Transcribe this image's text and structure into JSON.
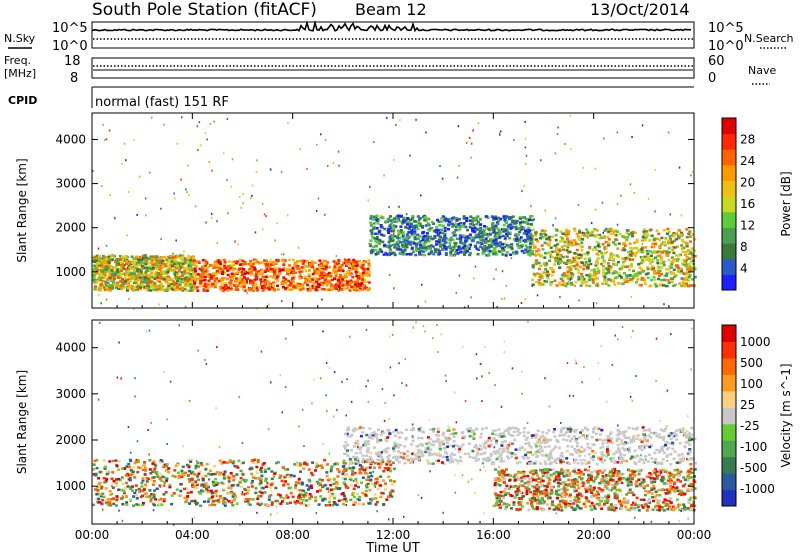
{
  "header": {
    "station": "South Pole Station (fitACF)",
    "beam": "Beam 12",
    "date": "13/Oct/2014"
  },
  "left_labels": {
    "nsky": "N.Sky",
    "freq": "Freq.",
    "mhz": "[MHz]",
    "cpid": "CPID"
  },
  "right_labels": {
    "nsearch": "N.Search",
    "nave": "Nave"
  },
  "noise_axis": {
    "top_left": "10^5",
    "bot_left": "10^0",
    "top_right": "10^5",
    "bot_right": "10^0"
  },
  "freq_axis": {
    "top": "18",
    "bottom": "8"
  },
  "nave_axis": {
    "top": "60",
    "bottom": "0"
  },
  "cpid_text": "normal (fast) 151 RF",
  "xlabel": "Time UT",
  "chart_data": [
    {
      "type": "heatmap",
      "title": "",
      "xlabel": "Time UT",
      "ylabel": "Slant Range [km]",
      "x_ticks": [
        "00:00",
        "04:00",
        "08:00",
        "12:00",
        "16:00",
        "20:00",
        "00:00"
      ],
      "x_range_hours": [
        0,
        24
      ],
      "y_ticks": [
        1000,
        2000,
        3000,
        4000
      ],
      "ylim": [
        180,
        4600
      ],
      "colorbar": {
        "label": "Power [dB]",
        "ticks": [
          "4",
          "8",
          "12",
          "16",
          "20",
          "24",
          "28"
        ],
        "colors": [
          "#1e1eff",
          "#2a5cc8",
          "#3a7a3a",
          "#4aa050",
          "#5bcc3a",
          "#c8d820",
          "#f0c010",
          "#ff9a00",
          "#ff6400",
          "#ff2800",
          "#e00000"
        ]
      },
      "bands": [
        {
          "t0": 0.0,
          "t1": 4.0,
          "r0": 600,
          "r1": 1400,
          "level": "mid"
        },
        {
          "t0": 4.0,
          "t1": 11.0,
          "r0": 600,
          "r1": 1300,
          "level": "high"
        },
        {
          "t0": 11.0,
          "t1": 17.5,
          "r0": 1400,
          "r1": 2300,
          "level": "low"
        },
        {
          "t0": 17.5,
          "t1": 24.0,
          "r0": 700,
          "r1": 2000,
          "level": "mid"
        }
      ]
    },
    {
      "type": "heatmap",
      "title": "",
      "xlabel": "Time UT",
      "ylabel": "Slant Range [km]",
      "x_ticks": [
        "00:00",
        "04:00",
        "08:00",
        "12:00",
        "16:00",
        "20:00",
        "00:00"
      ],
      "x_range_hours": [
        0,
        24
      ],
      "y_ticks": [
        1000,
        2000,
        3000,
        4000
      ],
      "ylim": [
        180,
        4600
      ],
      "colorbar": {
        "label": "Velocity [m s^-1]",
        "ticks": [
          "1000",
          "500",
          "100",
          "25",
          "-25",
          "-100",
          "-500",
          "-1000"
        ],
        "colors": [
          "#2030c0",
          "#2a5aa0",
          "#3a7a50",
          "#4ea84e",
          "#66cc33",
          "#c8c8c8",
          "#ffd080",
          "#ff9a20",
          "#ff6a00",
          "#ff3000",
          "#e00000"
        ]
      },
      "bands": [
        {
          "t0": 0.0,
          "t1": 12.0,
          "r0": 600,
          "r1": 1600,
          "level": "neg"
        },
        {
          "t0": 10.0,
          "t1": 24.0,
          "r0": 1500,
          "r1": 2300,
          "level": "zero"
        },
        {
          "t0": 16.0,
          "t1": 24.0,
          "r0": 500,
          "r1": 1400,
          "level": "mixed"
        }
      ]
    }
  ]
}
